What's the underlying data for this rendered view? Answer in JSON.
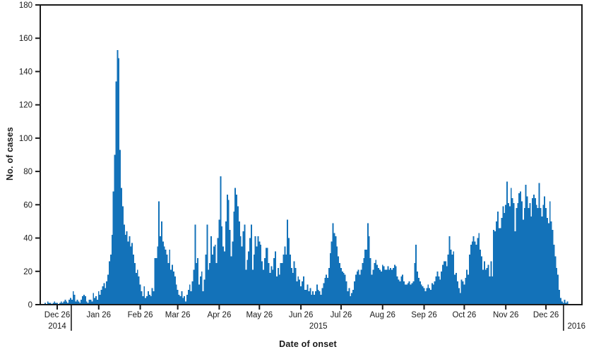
{
  "figure": {
    "background": "#ffffff",
    "bar_color": "#1372b9",
    "axis_color": "#1a1a1a",
    "text_color": "#1a1a1a"
  },
  "chart_data": {
    "type": "bar",
    "title": "",
    "xlabel": "Date of onset",
    "ylabel": "No. of cases",
    "ylim": [
      0,
      180
    ],
    "yticks": [
      0,
      20,
      40,
      60,
      80,
      100,
      120,
      140,
      160,
      180
    ],
    "grid": false,
    "legend": null,
    "x_unit": "day of onset (daily bars)",
    "month_ticks": [
      {
        "label": "Dec 26",
        "day": 9
      },
      {
        "label": "Jan 26",
        "day": 40
      },
      {
        "label": "Feb 26",
        "day": 71
      },
      {
        "label": "Mar 26",
        "day": 99
      },
      {
        "label": "Apr 26",
        "day": 130
      },
      {
        "label": "May 26",
        "day": 160
      },
      {
        "label": "Jun 26",
        "day": 191
      },
      {
        "label": "Jul 26",
        "day": 221
      },
      {
        "label": "Aug 26",
        "day": 252
      },
      {
        "label": "Sep 26",
        "day": 283
      },
      {
        "label": "Oct 26",
        "day": 313
      },
      {
        "label": "Nov 26",
        "day": 344
      },
      {
        "label": "Dec 26",
        "day": 374
      }
    ],
    "year_labels": [
      {
        "label": "2014",
        "day": 9,
        "align": "center"
      },
      {
        "label": "2015",
        "day": 204,
        "align": "center"
      },
      {
        "label": "2016",
        "day": 389,
        "align": "left"
      }
    ],
    "year_divider_days": [
      20,
      387.6
    ],
    "values": [
      1,
      0,
      2,
      1,
      1,
      0,
      1,
      2,
      1,
      1,
      0,
      1,
      2,
      1,
      2,
      3,
      2,
      1,
      3,
      4,
      3,
      8,
      6,
      2,
      3,
      2,
      1,
      3,
      5,
      6,
      5,
      2,
      1,
      3,
      3,
      2,
      7,
      4,
      5,
      3,
      8,
      6,
      9,
      11,
      13,
      10,
      14,
      18,
      26,
      30,
      42,
      68,
      90,
      134,
      153,
      148,
      93,
      70,
      59,
      48,
      42,
      44,
      38,
      41,
      35,
      37,
      30,
      25,
      19,
      21,
      17,
      12,
      8,
      5,
      11,
      4,
      5,
      8,
      6,
      5,
      10,
      8,
      28,
      28,
      35,
      62,
      41,
      50,
      38,
      35,
      33,
      30,
      25,
      33,
      21,
      24,
      20,
      17,
      12,
      9,
      6,
      5,
      8,
      4,
      5,
      2,
      6,
      9,
      12,
      8,
      14,
      21,
      48,
      25,
      28,
      12,
      17,
      20,
      8,
      15,
      30,
      48,
      21,
      25,
      41,
      30,
      35,
      36,
      25,
      40,
      51,
      77,
      47,
      35,
      32,
      50,
      66,
      63,
      45,
      29,
      38,
      56,
      70,
      66,
      59,
      50,
      41,
      35,
      44,
      48,
      21,
      27,
      32,
      40,
      48,
      21,
      30,
      41,
      35,
      41,
      38,
      36,
      26,
      21,
      28,
      34,
      34,
      25,
      19,
      23,
      21,
      28,
      32,
      17,
      22,
      18,
      25,
      25,
      30,
      35,
      30,
      51,
      40,
      30,
      22,
      19,
      26,
      22,
      14,
      17,
      15,
      11,
      14,
      17,
      9,
      9,
      12,
      8,
      10,
      6,
      8,
      6,
      8,
      12,
      9,
      8,
      6,
      10,
      13,
      16,
      18,
      16,
      22,
      31,
      38,
      49,
      43,
      41,
      35,
      29,
      25,
      22,
      20,
      19,
      18,
      14,
      8,
      10,
      5,
      7,
      9,
      14,
      18,
      20,
      21,
      18,
      21,
      25,
      28,
      33,
      33,
      49,
      41,
      28,
      18,
      21,
      25,
      27,
      24,
      22,
      21,
      20,
      24,
      23,
      21,
      21,
      23,
      21,
      22,
      21,
      22,
      24,
      23,
      17,
      15,
      14,
      17,
      18,
      14,
      12,
      12,
      13,
      14,
      12,
      13,
      14,
      25,
      36,
      20,
      16,
      14,
      12,
      11,
      10,
      8,
      10,
      12,
      10,
      9,
      13,
      12,
      14,
      17,
      20,
      17,
      15,
      20,
      24,
      26,
      26,
      23,
      30,
      41,
      33,
      30,
      32,
      18,
      19,
      14,
      10,
      7,
      15,
      14,
      12,
      16,
      21,
      18,
      30,
      36,
      38,
      41,
      38,
      36,
      40,
      43,
      33,
      29,
      21,
      26,
      21,
      22,
      24,
      17,
      26,
      17,
      45,
      44,
      50,
      56,
      46,
      46,
      52,
      59,
      55,
      60,
      74,
      61,
      59,
      70,
      64,
      61,
      44,
      58,
      61,
      67,
      68,
      62,
      51,
      58,
      72,
      65,
      58,
      61,
      53,
      64,
      66,
      64,
      60,
      58,
      73,
      58,
      53,
      60,
      65,
      58,
      52,
      49,
      62,
      50,
      45,
      36,
      29,
      22,
      18,
      9,
      4,
      2,
      1,
      3,
      1,
      2
    ]
  }
}
